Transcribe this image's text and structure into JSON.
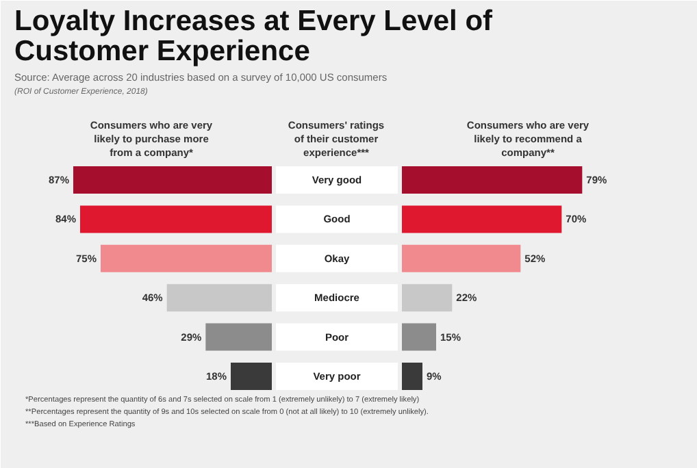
{
  "chart_data": [
    {
      "type": "bar",
      "orientation": "horizontal",
      "title": "Loyalty Increases at Every Level of Customer Experience",
      "subtitle": "Source: Average across 20 industries based on a survey of 10,000 US consumers",
      "xlabel": "Consumers who are very likely to purchase more from a company*",
      "ylabel": "Consumers' ratings of their customer experience***",
      "categories": [
        "Very good",
        "Good",
        "Okay",
        "Mediocre",
        "Poor",
        "Very poor"
      ],
      "colors": [
        "#a50f2d",
        "#e0182f",
        "#f08a8e",
        "#c8c8c8",
        "#8c8c8c",
        "#3a3a3a"
      ],
      "values": [
        87,
        84,
        75,
        46,
        29,
        18
      ],
      "value_labels": [
        "87%",
        "84%",
        "75%",
        "46%",
        "29%",
        "18%"
      ],
      "annotations": [
        "(ROI of Customer Experience, 2018)",
        "*Percentages represent the quantity of 6s and 7s selected on scale from 1 (extremely unlikely) to 7 (extremely likely)",
        "**Percentages represent the quantity of 9s and 10s selected on scale from 0 (not at all likely) to 10 (extremely unlikely).",
        "***Based on Experience Ratings"
      ]
    },
    {
      "type": "bar",
      "orientation": "horizontal",
      "xlabel": "Consumers who are very likely to recommend a company**",
      "categories": [
        null,
        null,
        null,
        null,
        null,
        null
      ],
      "colors": [
        "#a50f2d",
        "#e0182f",
        "#f08a8e",
        "#c8c8c8",
        "#8c8c8c",
        "#3a3a3a"
      ],
      "values": [
        79,
        70,
        52,
        22,
        15,
        9
      ],
      "value_labels": [
        "79%",
        "70%",
        "52%",
        "22%",
        "15%",
        "9%"
      ]
    }
  ]
}
